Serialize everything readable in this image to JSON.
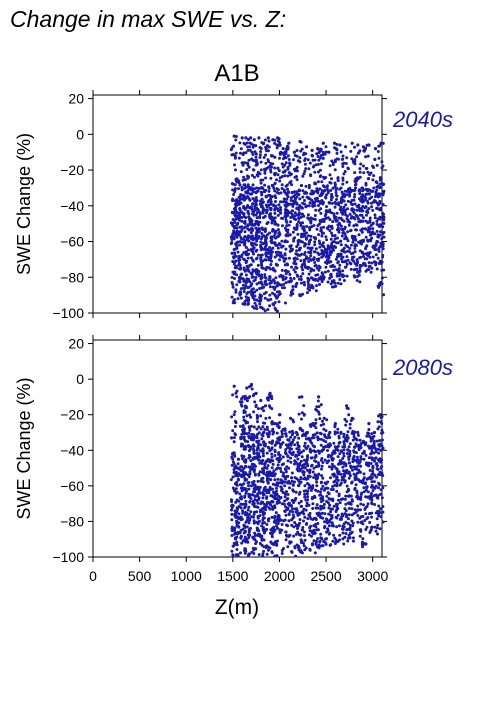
{
  "page": {
    "title": "Change in max SWE vs. Z:"
  },
  "chart_data": {
    "type": "scatter",
    "scenario": "A1B",
    "xlabel": "Z(m)",
    "ylabel": "SWE Change (%)",
    "xlim": [
      0,
      3100
    ],
    "ylim": [
      -100,
      22
    ],
    "xticks": [
      0,
      500,
      1000,
      1500,
      2000,
      2500,
      3000
    ],
    "yticks": [
      -100,
      -80,
      -60,
      -40,
      -20,
      0,
      20
    ],
    "point_color": "#1a1aaa",
    "label_color": "#1a1aaa",
    "panels": [
      {
        "label": "2040s",
        "columns": [
          {
            "x": 1515,
            "min": -96,
            "max": -1
          },
          {
            "x": 1545,
            "min": -95,
            "max": -25
          },
          {
            "x": 1600,
            "min": -92,
            "max": -2
          },
          {
            "x": 1640,
            "min": -97,
            "max": -2
          },
          {
            "x": 1690,
            "min": -96,
            "max": -2
          },
          {
            "x": 1730,
            "min": -98,
            "max": -3
          },
          {
            "x": 1780,
            "min": -99,
            "max": -2
          },
          {
            "x": 1830,
            "min": -100,
            "max": -5
          },
          {
            "x": 1880,
            "min": -99,
            "max": -2
          },
          {
            "x": 1930,
            "min": -98,
            "max": -3
          },
          {
            "x": 1980,
            "min": -99,
            "max": -2
          },
          {
            "x": 2040,
            "min": -95,
            "max": -8
          },
          {
            "x": 2100,
            "min": -94,
            "max": -5
          },
          {
            "x": 2160,
            "min": -90,
            "max": -10
          },
          {
            "x": 2220,
            "min": -91,
            "max": -4
          },
          {
            "x": 2290,
            "min": -89,
            "max": -7
          },
          {
            "x": 2350,
            "min": -90,
            "max": -9
          },
          {
            "x": 2410,
            "min": -88,
            "max": -8
          },
          {
            "x": 2470,
            "min": -86,
            "max": -5
          },
          {
            "x": 2530,
            "min": -85,
            "max": -10
          },
          {
            "x": 2590,
            "min": -87,
            "max": -5
          },
          {
            "x": 2650,
            "min": -85,
            "max": -6
          },
          {
            "x": 2710,
            "min": -84,
            "max": -7
          },
          {
            "x": 2780,
            "min": -80,
            "max": -5
          },
          {
            "x": 2840,
            "min": -83,
            "max": -6
          },
          {
            "x": 2900,
            "min": -78,
            "max": -7
          },
          {
            "x": 2960,
            "min": -78,
            "max": -6
          },
          {
            "x": 3030,
            "min": -76,
            "max": -8
          },
          {
            "x": 3090,
            "min": -90,
            "max": -5
          }
        ]
      },
      {
        "label": "2080s",
        "columns": [
          {
            "x": 1515,
            "min": -100,
            "max": -4
          },
          {
            "x": 1560,
            "min": -100,
            "max": -45
          },
          {
            "x": 1610,
            "min": -100,
            "max": -10
          },
          {
            "x": 1650,
            "min": -100,
            "max": -5
          },
          {
            "x": 1700,
            "min": -100,
            "max": -3
          },
          {
            "x": 1750,
            "min": -100,
            "max": -8
          },
          {
            "x": 1800,
            "min": -100,
            "max": -12
          },
          {
            "x": 1850,
            "min": -100,
            "max": -15
          },
          {
            "x": 1900,
            "min": -100,
            "max": -8
          },
          {
            "x": 1950,
            "min": -100,
            "max": -25
          },
          {
            "x": 2000,
            "min": -100,
            "max": -20
          },
          {
            "x": 2060,
            "min": -100,
            "max": -28
          },
          {
            "x": 2120,
            "min": -100,
            "max": -22
          },
          {
            "x": 2180,
            "min": -100,
            "max": -30
          },
          {
            "x": 2240,
            "min": -98,
            "max": -10
          },
          {
            "x": 2300,
            "min": -97,
            "max": -30
          },
          {
            "x": 2360,
            "min": -100,
            "max": -25
          },
          {
            "x": 2420,
            "min": -96,
            "max": -10
          },
          {
            "x": 2480,
            "min": -95,
            "max": -22
          },
          {
            "x": 2540,
            "min": -95,
            "max": -30
          },
          {
            "x": 2600,
            "min": -94,
            "max": -25
          },
          {
            "x": 2660,
            "min": -92,
            "max": -30
          },
          {
            "x": 2720,
            "min": -93,
            "max": -15
          },
          {
            "x": 2780,
            "min": -92,
            "max": -22
          },
          {
            "x": 2840,
            "min": -90,
            "max": -30
          },
          {
            "x": 2900,
            "min": -95,
            "max": -35
          },
          {
            "x": 2960,
            "min": -88,
            "max": -25
          },
          {
            "x": 3020,
            "min": -93,
            "max": -30
          },
          {
            "x": 3080,
            "min": -92,
            "max": -20
          }
        ]
      }
    ]
  }
}
